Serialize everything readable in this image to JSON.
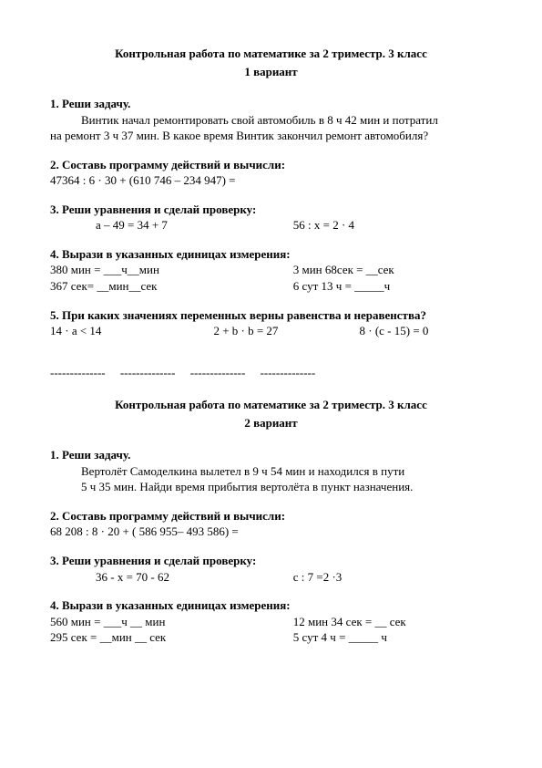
{
  "variant1": {
    "title": "Контрольная работа по математике за 2 триместр. 3 класс",
    "subtitle": "1 вариант",
    "t1_head": "1. Реши задачу.",
    "t1_l1": "Винтик начал ремонтировать свой автомобиль в 8 ч 42 мин и потратил",
    "t1_l2": "на ремонт 3 ч 37 мин. В какое время Винтик закончил ремонт автомобиля?",
    "t2_head": "2. Составь программу действий и вычисли:",
    "t2_expr": "47364 : 6 · 30 + (610 746  – 234 947) =",
    "t3_head": "3. Реши уравнения и сделай проверку:",
    "t3_a": "a – 49 = 34 + 7",
    "t3_b": "56 : x = 2 · 4",
    "t4_head": "4. Вырази в указанных единицах измерения:",
    "t4_a": "380 мин = ___ч__мин",
    "t4_b": "3 мин 68сек = __сек",
    "t4_c": "367 сек= __мин__сек",
    "t4_d": "6 сут 13 ч = _____ч",
    "t5_head": "5. При каких значениях переменных верны равенства и неравенства?",
    "t5_a": "14 · a < 14",
    "t5_b": "2 + b · b = 27",
    "t5_c": "8 · (c - 15) = 0"
  },
  "divider": "--------------     --------------     --------------     --------------",
  "variant2": {
    "title": "Контрольная работа по математике за 2 триместр. 3 класс",
    "subtitle": "2 вариант",
    "t1_head": "1. Реши задачу.",
    "t1_l1": "Вертолёт Самоделкина вылетел в 9 ч 54 мин и находился в пути",
    "t1_l2": "5 ч 35 мин. Найди время прибытия вертолёта в пункт назначения.",
    "t2_head": "2. Составь программу действий и вычисли:",
    "t2_expr": "68 208 : 8 · 20 + ( 586 955– 493 586) =",
    "t3_head": "3. Реши уравнения и сделай проверку:",
    "t3_a": "36 - x = 70 - 62",
    "t3_b": "c : 7 =2 ·3",
    "t4_head": "4. Вырази в указанных единицах измерения:",
    "t4_a": "560 мин = ___ч __ мин",
    "t4_b": "12 мин 34 сек = __ сек",
    "t4_c": "295 сек = __мин __ сек",
    "t4_d": "5 сут 4 ч = _____ ч"
  }
}
